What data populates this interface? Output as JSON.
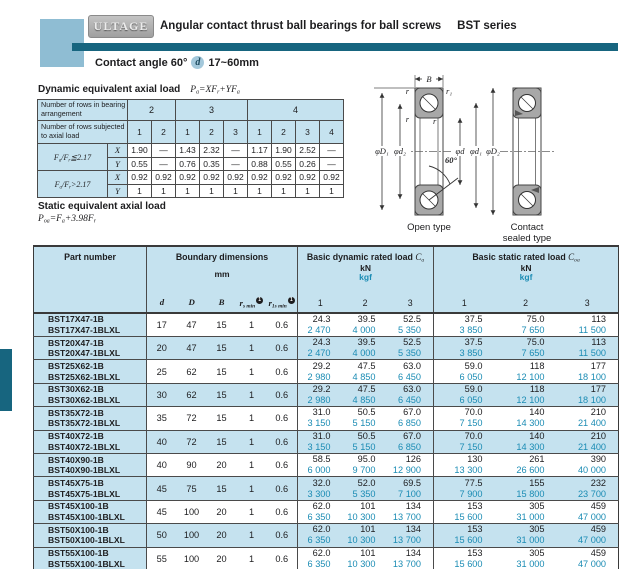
{
  "page": {
    "logo_text": "ULTAGE",
    "title": "Angular contact thrust ball bearings for ball screws",
    "series": "BST series",
    "contact_angle_label": "Contact angle 60°",
    "bore_symbol": "d",
    "bore_range": "17~60mm"
  },
  "dynamic_load_table": {
    "title": "Dynamic equivalent axial load",
    "formula": [
      {
        "text": "P"
      },
      {
        "text": "a",
        "sub": true
      },
      {
        "text": "="
      },
      {
        "text": "XF"
      },
      {
        "text": "r",
        "sub": true
      },
      {
        "text": "+"
      },
      {
        "text": "YF"
      },
      {
        "text": "a",
        "sub": true
      }
    ],
    "row1_label": "Number of rows in bearing arrangement",
    "row2_label": "Number of rows subjected to axial load",
    "groups": [
      {
        "label": "2"
      },
      {
        "label": "3"
      },
      {
        "label": "4"
      }
    ],
    "sub_cols": [
      "1",
      "2",
      "1",
      "2",
      "3",
      "1",
      "2",
      "3",
      "4"
    ],
    "x_label": "X",
    "y_label": "Y",
    "condition_rows": [
      {
        "label_parts": [
          {
            "text": "F"
          },
          {
            "text": "a",
            "sub": true
          },
          {
            "text": "/"
          },
          {
            "text": "F"
          },
          {
            "text": "r",
            "sub": true
          },
          {
            "text": "≦2.17"
          }
        ],
        "x_values": [
          "1.90",
          "—",
          "1.43",
          "2.32",
          "—",
          "1.17",
          "1.90",
          "2.52",
          "—"
        ],
        "y_values": [
          "0.55",
          "—",
          "0.76",
          "0.35",
          "—",
          "0.88",
          "0.55",
          "0.26",
          "—"
        ]
      },
      {
        "label_parts": [
          {
            "text": "F"
          },
          {
            "text": "a",
            "sub": true
          },
          {
            "text": "/"
          },
          {
            "text": "F"
          },
          {
            "text": "r",
            "sub": true
          },
          {
            "text": ">2.17"
          }
        ],
        "x_values": [
          "0.92",
          "0.92",
          "0.92",
          "0.92",
          "0.92",
          "0.92",
          "0.92",
          "0.92",
          "0.92"
        ],
        "y_values": [
          "1",
          "1",
          "1",
          "1",
          "1",
          "1",
          "1",
          "1",
          "1"
        ]
      }
    ]
  },
  "static_load": {
    "title": "Static equivalent axial load",
    "formula": [
      {
        "text": "P"
      },
      {
        "text": "oa",
        "sub": true
      },
      {
        "text": "="
      },
      {
        "text": "F"
      },
      {
        "text": "a",
        "sub": true
      },
      {
        "text": "+3.98"
      },
      {
        "text": "F"
      },
      {
        "text": "r",
        "sub": true
      }
    ]
  },
  "diagram": {
    "dim_B": "B",
    "dim_r": "r",
    "dim_r1": "r₁",
    "dim_phiD1": "φD₁",
    "dim_phid2": "φd₂",
    "dim_phid": "φd",
    "dim_phid1": "φd₁",
    "dim_phiD2": "φD₂",
    "angle": "60°",
    "open_caption": "Open type",
    "sealed_caption_line1": "Contact",
    "sealed_caption_line2": "sealed type"
  },
  "main_table": {
    "col_part": "Part number",
    "col_boundary": "Boundary dimensions",
    "unit_mm": "mm",
    "col_dynamic": "Basic dynamic rated load",
    "col_dynamic_symbol": [
      {
        "text": "C"
      },
      {
        "text": "a",
        "sub": true
      }
    ],
    "col_static": "Basic static rated load",
    "col_static_symbol": [
      {
        "text": "C"
      },
      {
        "text": "oa",
        "sub": true
      }
    ],
    "unit_kn": "kN",
    "unit_kgf": "kgf",
    "footnote_mark": "1",
    "dim_cols": [
      {
        "parts": [
          {
            "text": "d"
          }
        ]
      },
      {
        "parts": [
          {
            "text": "D"
          }
        ]
      },
      {
        "parts": [
          {
            "text": "B"
          }
        ]
      },
      {
        "parts": [
          {
            "text": "r"
          },
          {
            "text": "s min",
            "sub": true
          }
        ],
        "footnote": true
      },
      {
        "parts": [
          {
            "text": "r"
          },
          {
            "text": "1s min",
            "sub": true
          }
        ],
        "footnote": true
      }
    ],
    "load_cols": [
      "1",
      "2",
      "3"
    ],
    "rows": [
      {
        "part": [
          "BST17X47-1B",
          "BST17X47-1BLXL"
        ],
        "d": "17",
        "D": "47",
        "B": "15",
        "rs": "1",
        "r1s": "0.6",
        "dyn_kn": [
          "24.3",
          "39.5",
          "52.5"
        ],
        "dyn_kgf": [
          "2 470",
          "4 000",
          "5 350"
        ],
        "st_kn": [
          "37.5",
          "75.0",
          "113"
        ],
        "st_kgf": [
          "3 850",
          "7 650",
          "11 500"
        ]
      },
      {
        "part": [
          "BST20X47-1B",
          "BST20X47-1BLXL"
        ],
        "d": "20",
        "D": "47",
        "B": "15",
        "rs": "1",
        "r1s": "0.6",
        "dyn_kn": [
          "24.3",
          "39.5",
          "52.5"
        ],
        "dyn_kgf": [
          "2 470",
          "4 000",
          "5 350"
        ],
        "st_kn": [
          "37.5",
          "75.0",
          "113"
        ],
        "st_kgf": [
          "3 850",
          "7 650",
          "11 500"
        ]
      },
      {
        "part": [
          "BST25X62-1B",
          "BST25X62-1BLXL"
        ],
        "d": "25",
        "D": "62",
        "B": "15",
        "rs": "1",
        "r1s": "0.6",
        "dyn_kn": [
          "29.2",
          "47.5",
          "63.0"
        ],
        "dyn_kgf": [
          "2 980",
          "4 850",
          "6 450"
        ],
        "st_kn": [
          "59.0",
          "118",
          "177"
        ],
        "st_kgf": [
          "6 050",
          "12 100",
          "18 100"
        ]
      },
      {
        "part": [
          "BST30X62-1B",
          "BST30X62-1BLXL"
        ],
        "d": "30",
        "D": "62",
        "B": "15",
        "rs": "1",
        "r1s": "0.6",
        "dyn_kn": [
          "29.2",
          "47.5",
          "63.0"
        ],
        "dyn_kgf": [
          "2 980",
          "4 850",
          "6 450"
        ],
        "st_kn": [
          "59.0",
          "118",
          "177"
        ],
        "st_kgf": [
          "6 050",
          "12 100",
          "18 100"
        ]
      },
      {
        "part": [
          "BST35X72-1B",
          "BST35X72-1BLXL"
        ],
        "d": "35",
        "D": "72",
        "B": "15",
        "rs": "1",
        "r1s": "0.6",
        "dyn_kn": [
          "31.0",
          "50.5",
          "67.0"
        ],
        "dyn_kgf": [
          "3 150",
          "5 150",
          "6 850"
        ],
        "st_kn": [
          "70.0",
          "140",
          "210"
        ],
        "st_kgf": [
          "7 150",
          "14 300",
          "21 400"
        ]
      },
      {
        "part": [
          "BST40X72-1B",
          "BST40X72-1BLXL"
        ],
        "d": "40",
        "D": "72",
        "B": "15",
        "rs": "1",
        "r1s": "0.6",
        "dyn_kn": [
          "31.0",
          "50.5",
          "67.0"
        ],
        "dyn_kgf": [
          "3 150",
          "5 150",
          "6 850"
        ],
        "st_kn": [
          "70.0",
          "140",
          "210"
        ],
        "st_kgf": [
          "7 150",
          "14 300",
          "21 400"
        ]
      },
      {
        "part": [
          "BST40X90-1B",
          "BST40X90-1BLXL"
        ],
        "d": "40",
        "D": "90",
        "B": "20",
        "rs": "1",
        "r1s": "0.6",
        "dyn_kn": [
          "58.5",
          "95.0",
          "126"
        ],
        "dyn_kgf": [
          "6 000",
          "9 700",
          "12 900"
        ],
        "st_kn": [
          "130",
          "261",
          "390"
        ],
        "st_kgf": [
          "13 300",
          "26 600",
          "40 000"
        ]
      },
      {
        "part": [
          "BST45X75-1B",
          "BST45X75-1BLXL"
        ],
        "d": "45",
        "D": "75",
        "B": "15",
        "rs": "1",
        "r1s": "0.6",
        "dyn_kn": [
          "32.0",
          "52.0",
          "69.5"
        ],
        "dyn_kgf": [
          "3 300",
          "5 350",
          "7 100"
        ],
        "st_kn": [
          "77.5",
          "155",
          "232"
        ],
        "st_kgf": [
          "7 900",
          "15 800",
          "23 700"
        ]
      },
      {
        "part": [
          "BST45X100-1B",
          "BST45X100-1BLXL"
        ],
        "d": "45",
        "D": "100",
        "B": "20",
        "rs": "1",
        "r1s": "0.6",
        "dyn_kn": [
          "62.0",
          "101",
          "134"
        ],
        "dyn_kgf": [
          "6 350",
          "10 300",
          "13 700"
        ],
        "st_kn": [
          "153",
          "305",
          "459"
        ],
        "st_kgf": [
          "15 600",
          "31 000",
          "47 000"
        ]
      },
      {
        "part": [
          "BST50X100-1B",
          "BST50X100-1BLXL"
        ],
        "d": "50",
        "D": "100",
        "B": "20",
        "rs": "1",
        "r1s": "0.6",
        "dyn_kn": [
          "62.0",
          "101",
          "134"
        ],
        "dyn_kgf": [
          "6 350",
          "10 300",
          "13 700"
        ],
        "st_kn": [
          "153",
          "305",
          "459"
        ],
        "st_kgf": [
          "15 600",
          "31 000",
          "47 000"
        ]
      },
      {
        "part": [
          "BST55X100-1B",
          "BST55X100-1BLXL"
        ],
        "d": "55",
        "D": "100",
        "B": "20",
        "rs": "1",
        "r1s": "0.6",
        "dyn_kn": [
          "62.0",
          "101",
          "134"
        ],
        "dyn_kgf": [
          "6 350",
          "10 300",
          "13 700"
        ],
        "st_kn": [
          "153",
          "305",
          "459"
        ],
        "st_kgf": [
          "15 600",
          "31 000",
          "47 000"
        ]
      }
    ]
  }
}
